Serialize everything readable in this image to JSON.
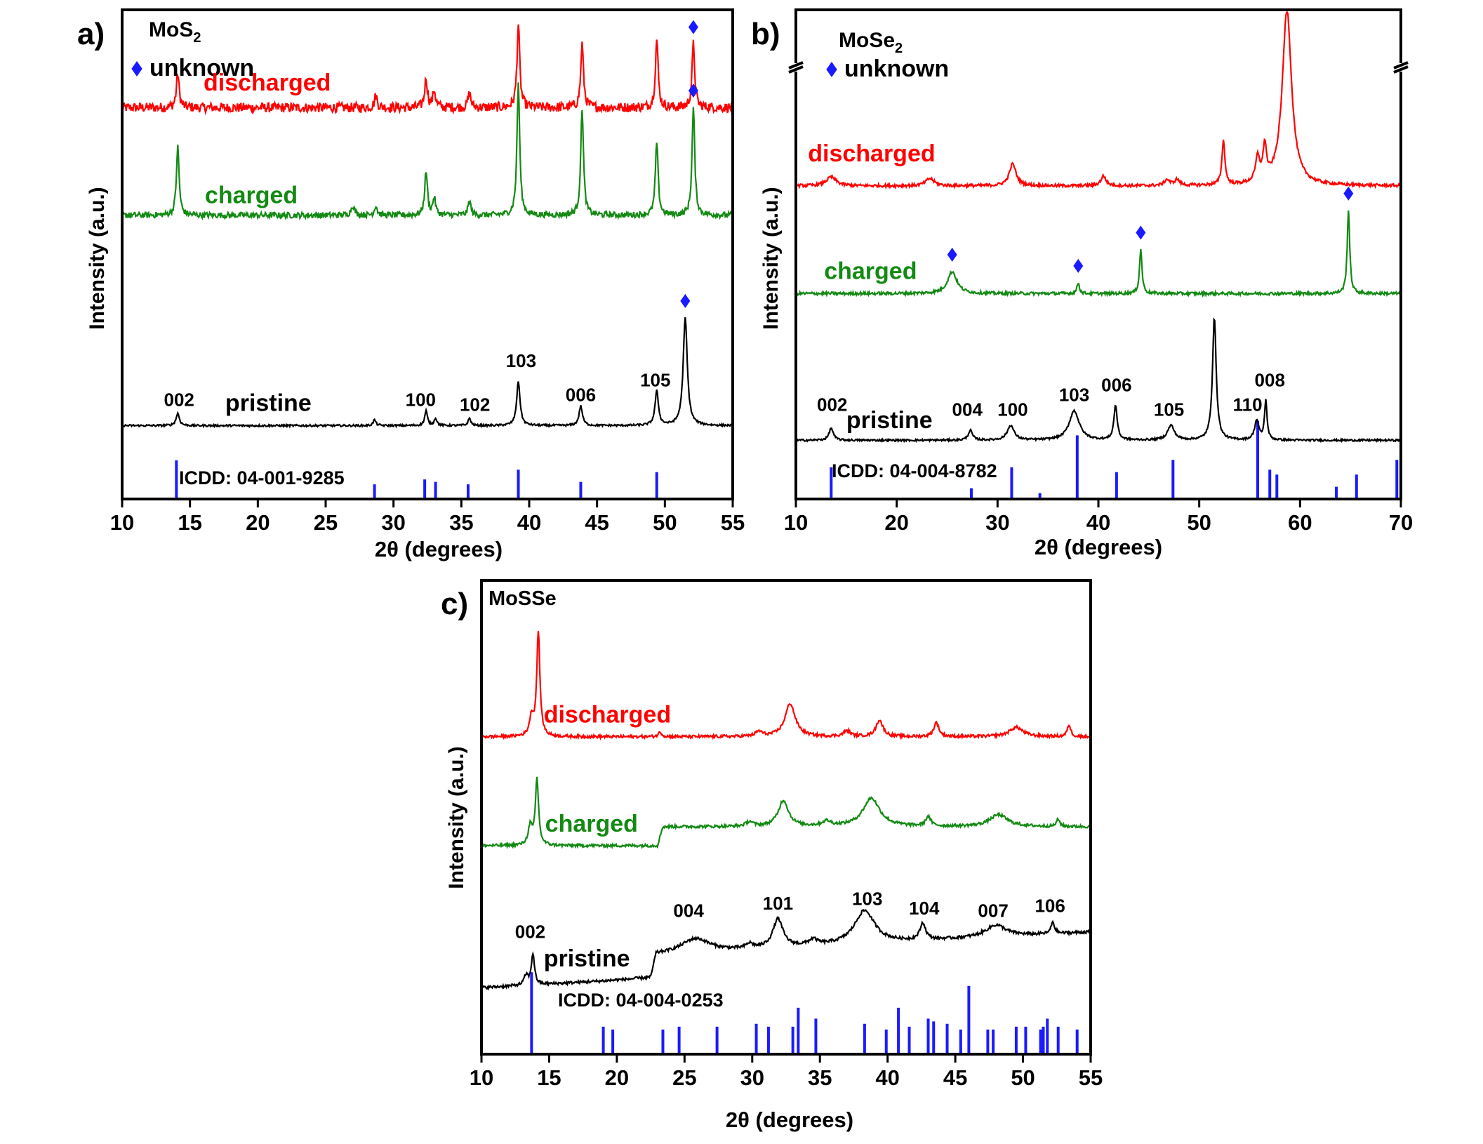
{
  "figure": {
    "colors": {
      "discharged": "#ff0000",
      "charged": "#138a13",
      "pristine": "#000000",
      "reference": "#1a1aff",
      "axis": "#000000"
    },
    "marker_icon": "blue-diamond-icon"
  },
  "chart_data": [
    {
      "panel": "a)",
      "type": "line",
      "title": "MoS2",
      "title_base": "MoS",
      "title_sub": "2",
      "xlabel": "2θ (degrees)",
      "ylabel": "Intensity (a.u.)",
      "xlim": [
        10,
        55
      ],
      "xticks": [
        10,
        15,
        20,
        25,
        30,
        35,
        40,
        45,
        50,
        55
      ],
      "legend_text": "unknown",
      "reference_label": "ICDD: 04-001-9285",
      "series": [
        {
          "name": "discharged",
          "baseline": 0.8,
          "noise": 0.01,
          "peaks": [
            [
              14.1,
              0.07,
              0.12
            ],
            [
              28.7,
              0.025,
              0.12
            ],
            [
              32.4,
              0.06,
              0.12
            ],
            [
              33.0,
              0.035,
              0.12
            ],
            [
              35.6,
              0.03,
              0.12
            ],
            [
              39.2,
              0.17,
              0.12
            ],
            [
              43.9,
              0.13,
              0.12
            ],
            [
              49.4,
              0.14,
              0.12
            ],
            [
              52.1,
              0.13,
              0.12
            ]
          ],
          "markers": [
            52.1
          ]
        },
        {
          "name": "charged",
          "baseline": 0.58,
          "noise": 0.006,
          "peaks": [
            [
              14.1,
              0.14,
              0.12
            ],
            [
              27.0,
              0.02,
              0.15
            ],
            [
              28.7,
              0.02,
              0.12
            ],
            [
              32.4,
              0.09,
              0.12
            ],
            [
              33.0,
              0.035,
              0.12
            ],
            [
              35.6,
              0.03,
              0.12
            ],
            [
              39.2,
              0.27,
              0.12
            ],
            [
              43.9,
              0.22,
              0.12
            ],
            [
              49.4,
              0.15,
              0.12
            ],
            [
              52.1,
              0.22,
              0.12
            ]
          ],
          "markers": [
            52.1
          ]
        },
        {
          "name": "pristine",
          "baseline": 0.15,
          "noise": 0.002,
          "peaks": [
            [
              14.1,
              0.025,
              0.15
            ],
            [
              28.6,
              0.012,
              0.12
            ],
            [
              32.4,
              0.03,
              0.12
            ],
            [
              33.1,
              0.015,
              0.12
            ],
            [
              35.6,
              0.015,
              0.12
            ],
            [
              39.2,
              0.09,
              0.15
            ],
            [
              43.8,
              0.04,
              0.15
            ],
            [
              49.4,
              0.07,
              0.15
            ],
            [
              51.5,
              0.22,
              0.18
            ]
          ],
          "markers": [
            51.5
          ]
        }
      ],
      "reference_lines": [
        [
          14.0,
          0.079
        ],
        [
          28.6,
          0.03
        ],
        [
          32.3,
          0.04
        ],
        [
          33.1,
          0.035
        ],
        [
          35.5,
          0.03
        ],
        [
          39.2,
          0.06
        ],
        [
          43.8,
          0.035
        ],
        [
          49.4,
          0.055
        ]
      ],
      "hkl_labels": [
        {
          "text": "002",
          "x": 14.2,
          "y": 0.19
        },
        {
          "text": "100",
          "x": 32.0,
          "y": 0.19
        },
        {
          "text": "102",
          "x": 36.0,
          "y": 0.18
        },
        {
          "text": "103",
          "x": 39.4,
          "y": 0.27
        },
        {
          "text": "006",
          "x": 43.8,
          "y": 0.2
        },
        {
          "text": "105",
          "x": 49.3,
          "y": 0.23
        }
      ],
      "series_labels": [
        {
          "series": "discharged",
          "text": "discharged",
          "x": 16.0,
          "y": 0.835
        },
        {
          "series": "charged",
          "text": "charged",
          "x": 16.1,
          "y": 0.605
        },
        {
          "series": "pristine",
          "text": "pristine",
          "x": 17.6,
          "y": 0.18
        }
      ]
    },
    {
      "panel": "b)",
      "type": "line",
      "title": "MoSe2",
      "title_base": "MoSe",
      "title_sub": "2",
      "xlabel": "2θ (degrees)",
      "ylabel": "Intensity (a.u.)",
      "xlim": [
        10,
        70
      ],
      "xticks": [
        10,
        20,
        30,
        40,
        50,
        60,
        70
      ],
      "axis_break": true,
      "legend_text": "unknown",
      "reference_label": "ICDD: 04-004-8782",
      "series": [
        {
          "name": "discharged",
          "baseline": 0.64,
          "noise": 0.003,
          "peaks": [
            [
              13.5,
              0.018,
              0.6
            ],
            [
              23.3,
              0.015,
              0.5
            ],
            [
              31.5,
              0.045,
              0.4
            ],
            [
              40.5,
              0.02,
              0.3
            ],
            [
              46.8,
              0.012,
              0.3
            ],
            [
              47.8,
              0.012,
              0.3
            ],
            [
              52.4,
              0.09,
              0.18
            ],
            [
              55.8,
              0.05,
              0.25
            ],
            [
              56.5,
              0.07,
              0.2
            ],
            [
              58.7,
              0.36,
              0.55
            ]
          ],
          "markers": []
        },
        {
          "name": "charged",
          "baseline": 0.42,
          "noise": 0.003,
          "peaks": [
            [
              25.5,
              0.045,
              0.55
            ],
            [
              38.0,
              0.022,
              0.15
            ],
            [
              44.2,
              0.09,
              0.15
            ],
            [
              64.8,
              0.17,
              0.15
            ]
          ],
          "markers": [
            25.5,
            38.0,
            44.2,
            64.8
          ]
        },
        {
          "name": "pristine",
          "baseline": 0.12,
          "noise": 0.002,
          "peaks": [
            [
              13.5,
              0.025,
              0.25
            ],
            [
              27.3,
              0.02,
              0.25
            ],
            [
              31.3,
              0.03,
              0.4
            ],
            [
              37.6,
              0.06,
              0.6
            ],
            [
              41.7,
              0.07,
              0.2
            ],
            [
              47.2,
              0.03,
              0.4
            ],
            [
              51.5,
              0.25,
              0.22
            ],
            [
              55.7,
              0.04,
              0.25
            ],
            [
              56.6,
              0.08,
              0.15
            ]
          ],
          "markers": []
        }
      ],
      "reference_lines": [
        [
          13.5,
          0.065
        ],
        [
          27.4,
          0.022
        ],
        [
          31.4,
          0.065
        ],
        [
          34.2,
          0.012
        ],
        [
          37.9,
          0.13
        ],
        [
          41.8,
          0.055
        ],
        [
          47.4,
          0.08
        ],
        [
          55.8,
          0.16
        ],
        [
          57.0,
          0.06
        ],
        [
          57.7,
          0.05
        ],
        [
          63.6,
          0.025
        ],
        [
          65.6,
          0.05
        ],
        [
          69.6,
          0.08
        ]
      ],
      "hkl_labels": [
        {
          "text": "002",
          "x": 13.6,
          "y": 0.18
        },
        {
          "text": "004",
          "x": 27.0,
          "y": 0.17
        },
        {
          "text": "100",
          "x": 31.5,
          "y": 0.17
        },
        {
          "text": "103",
          "x": 37.6,
          "y": 0.2
        },
        {
          "text": "006",
          "x": 41.8,
          "y": 0.22
        },
        {
          "text": "105",
          "x": 47.0,
          "y": 0.17
        },
        {
          "text": "110",
          "x": 54.8,
          "y": 0.18
        },
        {
          "text": "008",
          "x": 57.0,
          "y": 0.23
        }
      ],
      "series_labels": [
        {
          "series": "discharged",
          "text": "discharged",
          "x": 11.2,
          "y": 0.69
        },
        {
          "series": "charged",
          "text": "charged",
          "x": 12.8,
          "y": 0.45
        },
        {
          "series": "pristine",
          "text": "pristine",
          "x": 15.0,
          "y": 0.145
        }
      ]
    },
    {
      "panel": "c)",
      "type": "line",
      "title": "MoSSe",
      "title_base": "MoSSe",
      "title_sub": "",
      "xlabel": "2θ (degrees)",
      "ylabel": "Intensity (a.u.)",
      "xlim": [
        10,
        55
      ],
      "xticks": [
        10,
        15,
        20,
        25,
        30,
        35,
        40,
        45,
        50,
        55
      ],
      "legend_text": "",
      "reference_label": "ICDD: 04-004-0253",
      "series": [
        {
          "name": "discharged",
          "baseline": 0.67,
          "noise": 0.003,
          "peaks": [
            [
              13.7,
              0.04,
              0.18
            ],
            [
              14.2,
              0.22,
              0.14
            ],
            [
              23.2,
              0.01,
              0.15
            ],
            [
              30.5,
              0.01,
              0.3
            ],
            [
              32.8,
              0.07,
              0.45
            ],
            [
              37.0,
              0.012,
              0.3
            ],
            [
              39.4,
              0.035,
              0.3
            ],
            [
              43.6,
              0.03,
              0.22
            ],
            [
              49.5,
              0.02,
              0.6
            ],
            [
              53.4,
              0.025,
              0.15
            ]
          ],
          "markers": []
        },
        {
          "name": "charged",
          "baseline": 0.44,
          "noise": 0.003,
          "step": [
            23.0,
            0.04
          ],
          "peaks": [
            [
              13.6,
              0.04,
              0.18
            ],
            [
              14.1,
              0.14,
              0.14
            ],
            [
              29.8,
              0.01,
              0.3
            ],
            [
              32.3,
              0.055,
              0.45
            ],
            [
              35.5,
              0.01,
              0.4
            ],
            [
              38.8,
              0.06,
              0.75
            ],
            [
              43.0,
              0.02,
              0.22
            ],
            [
              48.2,
              0.025,
              0.8
            ],
            [
              52.6,
              0.015,
              0.15
            ]
          ],
          "markers": []
        },
        {
          "name": "pristine",
          "baseline": 0.14,
          "noise": 0.003,
          "slope": 0.0015,
          "step": [
            22.5,
            0.05
          ],
          "peaks": [
            [
              13.3,
              0.02,
              0.18
            ],
            [
              13.8,
              0.065,
              0.14
            ],
            [
              25.8,
              0.03,
              1.3
            ],
            [
              29.8,
              0.01,
              0.3
            ],
            [
              31.9,
              0.06,
              0.45
            ],
            [
              34.5,
              0.012,
              0.4
            ],
            [
              38.3,
              0.07,
              0.9
            ],
            [
              42.6,
              0.035,
              0.25
            ],
            [
              48.0,
              0.025,
              0.9
            ],
            [
              52.2,
              0.025,
              0.15
            ]
          ],
          "markers": []
        }
      ],
      "reference_lines": [
        [
          13.7,
          0.173
        ],
        [
          19.0,
          0.058
        ],
        [
          19.7,
          0.052
        ],
        [
          23.4,
          0.052
        ],
        [
          24.6,
          0.058
        ],
        [
          27.4,
          0.058
        ],
        [
          30.3,
          0.064
        ],
        [
          31.2,
          0.058
        ],
        [
          33.0,
          0.058
        ],
        [
          33.4,
          0.098
        ],
        [
          34.7,
          0.075
        ],
        [
          38.3,
          0.064
        ],
        [
          39.9,
          0.052
        ],
        [
          40.8,
          0.098
        ],
        [
          41.6,
          0.058
        ],
        [
          43.0,
          0.075
        ],
        [
          43.4,
          0.069
        ],
        [
          44.4,
          0.064
        ],
        [
          45.4,
          0.052
        ],
        [
          46.0,
          0.144
        ],
        [
          47.4,
          0.052
        ],
        [
          47.8,
          0.052
        ],
        [
          49.5,
          0.058
        ],
        [
          50.2,
          0.058
        ],
        [
          51.3,
          0.052
        ],
        [
          51.5,
          0.058
        ],
        [
          51.8,
          0.075
        ],
        [
          52.6,
          0.058
        ],
        [
          54.0,
          0.052
        ]
      ],
      "hkl_labels": [
        {
          "text": "002",
          "x": 13.6,
          "y": 0.245
        },
        {
          "text": "004",
          "x": 25.3,
          "y": 0.29
        },
        {
          "text": "101",
          "x": 31.9,
          "y": 0.305
        },
        {
          "text": "103",
          "x": 38.5,
          "y": 0.315
        },
        {
          "text": "104",
          "x": 42.7,
          "y": 0.295
        },
        {
          "text": "007",
          "x": 47.8,
          "y": 0.29
        },
        {
          "text": "106",
          "x": 52.0,
          "y": 0.3
        }
      ],
      "series_labels": [
        {
          "series": "discharged",
          "text": "discharged",
          "x": 14.6,
          "y": 0.7
        },
        {
          "series": "charged",
          "text": "charged",
          "x": 14.7,
          "y": 0.47
        },
        {
          "series": "pristine",
          "text": "pristine",
          "x": 14.6,
          "y": 0.185
        }
      ]
    }
  ]
}
